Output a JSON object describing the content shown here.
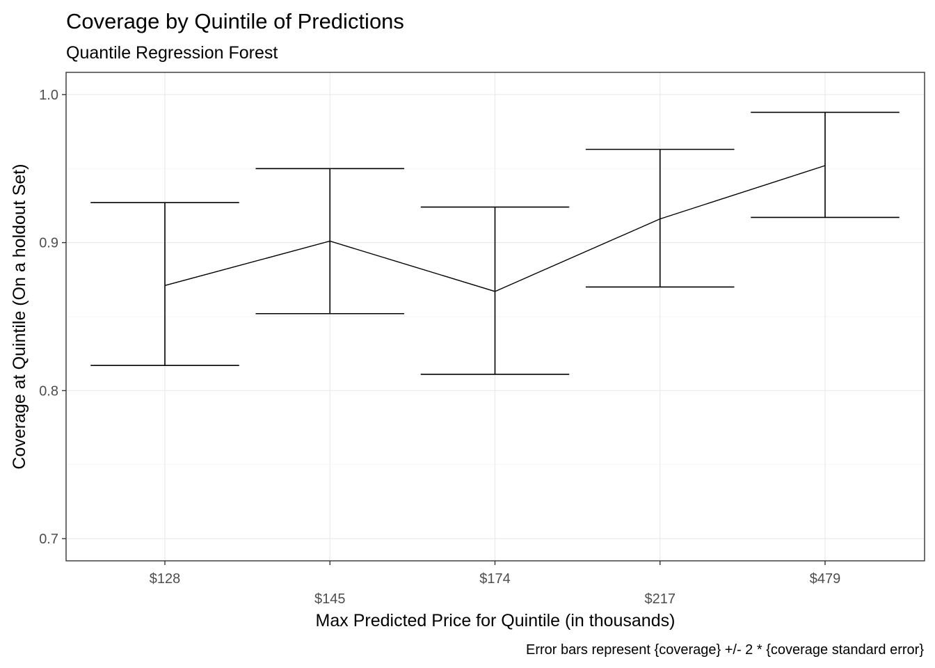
{
  "chart_data": {
    "type": "line",
    "title": "Coverage by Quintile of Predictions",
    "subtitle": "Quantile Regression Forest",
    "xlabel": "Max Predicted Price for Quintile (in thousands)",
    "ylabel": "Coverage at Quintile (On a holdout Set)",
    "caption": "Error bars represent {coverage} +/- 2 * {coverage standard error}",
    "categories": [
      "$128",
      "$145",
      "$174",
      "$217",
      "$479"
    ],
    "values": [
      0.871,
      0.901,
      0.867,
      0.916,
      0.952
    ],
    "error_low": [
      0.817,
      0.852,
      0.811,
      0.87,
      0.917
    ],
    "error_high": [
      0.927,
      0.95,
      0.924,
      0.963,
      0.988
    ],
    "ylim": [
      0.685,
      1.015
    ],
    "y_ticks": [
      0.7,
      0.8,
      0.9,
      1.0
    ],
    "y_tick_labels": [
      "0.7",
      "0.8",
      "0.9",
      "1.0"
    ],
    "grid": true,
    "x_label_dodge": true
  }
}
